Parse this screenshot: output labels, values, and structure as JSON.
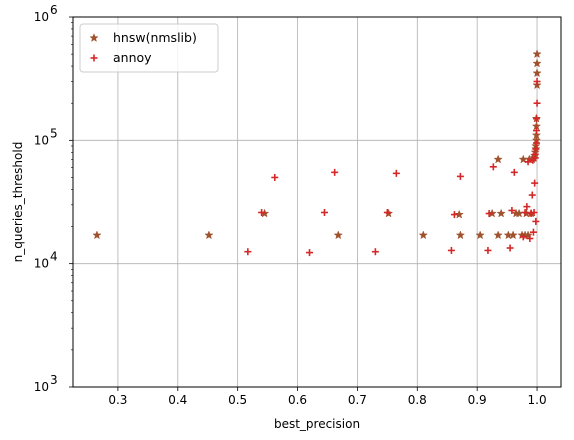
{
  "chart_data": {
    "type": "scatter",
    "xlabel": "best_precision",
    "ylabel": "n_queries_threshold",
    "xlim": [
      0.225,
      1.04
    ],
    "ylim": [
      1000,
      1000000
    ],
    "yscale": "log",
    "grid": true,
    "legend": "top-left",
    "x_ticks": [
      0.3,
      0.4,
      0.5,
      0.6,
      0.7,
      0.8,
      0.9,
      1.0
    ],
    "x_tick_labels": [
      "0.3",
      "0.4",
      "0.5",
      "0.6",
      "0.7",
      "0.8",
      "0.9",
      "1.0"
    ],
    "y_ticks": [
      {
        "value": 1000,
        "base": "10",
        "exp": "3"
      },
      {
        "value": 10000,
        "base": "10",
        "exp": "4"
      },
      {
        "value": 100000,
        "base": "10",
        "exp": "5"
      },
      {
        "value": 1000000,
        "base": "10",
        "exp": "6"
      }
    ],
    "series": [
      {
        "name": "hnsw(nmslib)",
        "marker": "star",
        "color": "#a0522d",
        "points": [
          [
            0.265,
            17000
          ],
          [
            0.452,
            17000
          ],
          [
            0.545,
            25500
          ],
          [
            0.668,
            17000
          ],
          [
            0.752,
            25500
          ],
          [
            0.81,
            17000
          ],
          [
            0.87,
            25000
          ],
          [
            0.872,
            17000
          ],
          [
            0.905,
            17000
          ],
          [
            0.925,
            25500
          ],
          [
            0.935,
            17000
          ],
          [
            0.94,
            25500
          ],
          [
            0.935,
            70000
          ],
          [
            0.952,
            17000
          ],
          [
            0.96,
            17000
          ],
          [
            0.965,
            25500
          ],
          [
            0.97,
            25500
          ],
          [
            0.975,
            17000
          ],
          [
            0.977,
            70000
          ],
          [
            0.98,
            17000
          ],
          [
            0.982,
            25500
          ],
          [
            0.985,
            17000
          ],
          [
            0.987,
            70000
          ],
          [
            0.99,
            25500
          ],
          [
            0.992,
            70000
          ],
          [
            0.995,
            72000
          ],
          [
            0.996,
            75000
          ],
          [
            0.997,
            80000
          ],
          [
            0.998,
            85000
          ],
          [
            0.998,
            90000
          ],
          [
            0.999,
            100000
          ],
          [
            0.999,
            110000
          ],
          [
            0.999,
            130000
          ],
          [
            0.999,
            150000
          ],
          [
            1.0,
            280000
          ],
          [
            1.0,
            350000
          ],
          [
            1.0,
            420000
          ],
          [
            1.0,
            500000
          ]
        ]
      },
      {
        "name": "annoy",
        "marker": "plus",
        "color": "#d62728",
        "points": [
          [
            0.517,
            12500
          ],
          [
            0.54,
            26000
          ],
          [
            0.562,
            50000
          ],
          [
            0.62,
            12300
          ],
          [
            0.645,
            26000
          ],
          [
            0.662,
            55000
          ],
          [
            0.73,
            12500
          ],
          [
            0.75,
            26000
          ],
          [
            0.765,
            54000
          ],
          [
            0.857,
            12800
          ],
          [
            0.862,
            25000
          ],
          [
            0.872,
            51000
          ],
          [
            0.918,
            12800
          ],
          [
            0.92,
            25500
          ],
          [
            0.927,
            61000
          ],
          [
            0.955,
            13400
          ],
          [
            0.958,
            27000
          ],
          [
            0.962,
            55000
          ],
          [
            0.977,
            16500
          ],
          [
            0.98,
            26000
          ],
          [
            0.983,
            29000
          ],
          [
            0.985,
            67000
          ],
          [
            0.988,
            16000
          ],
          [
            0.99,
            25500
          ],
          [
            0.992,
            36000
          ],
          [
            0.993,
            69000
          ],
          [
            0.994,
            18000
          ],
          [
            0.995,
            26000
          ],
          [
            0.996,
            45000
          ],
          [
            0.997,
            72000
          ],
          [
            0.997,
            77000
          ],
          [
            0.998,
            22000
          ],
          [
            0.998,
            85000
          ],
          [
            0.999,
            95000
          ],
          [
            0.999,
            120000
          ],
          [
            0.999,
            150000
          ],
          [
            1.0,
            200000
          ],
          [
            1.0,
            300000
          ]
        ]
      }
    ]
  }
}
